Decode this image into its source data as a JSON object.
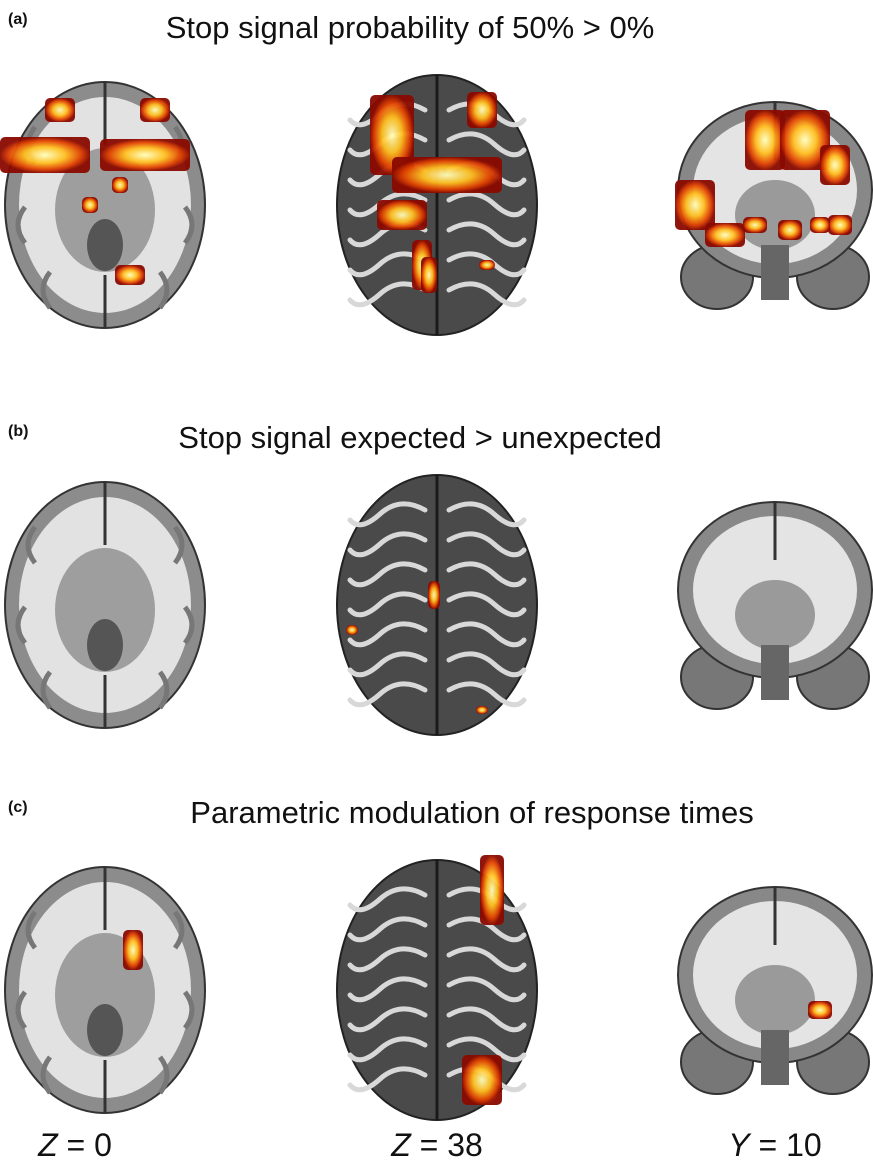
{
  "panels": [
    {
      "label": "(a)",
      "title": "Stop signal probability of 50% > 0%"
    },
    {
      "label": "(b)",
      "title": "Stop signal expected > unexpected"
    },
    {
      "label": "(c)",
      "title": "Parametric modulation of response times"
    }
  ],
  "captions": [
    {
      "variable": "Z",
      "rest": " = 0"
    },
    {
      "variable": "Z",
      "rest": " = 38"
    },
    {
      "variable": "Y",
      "rest": " = 10"
    }
  ]
}
